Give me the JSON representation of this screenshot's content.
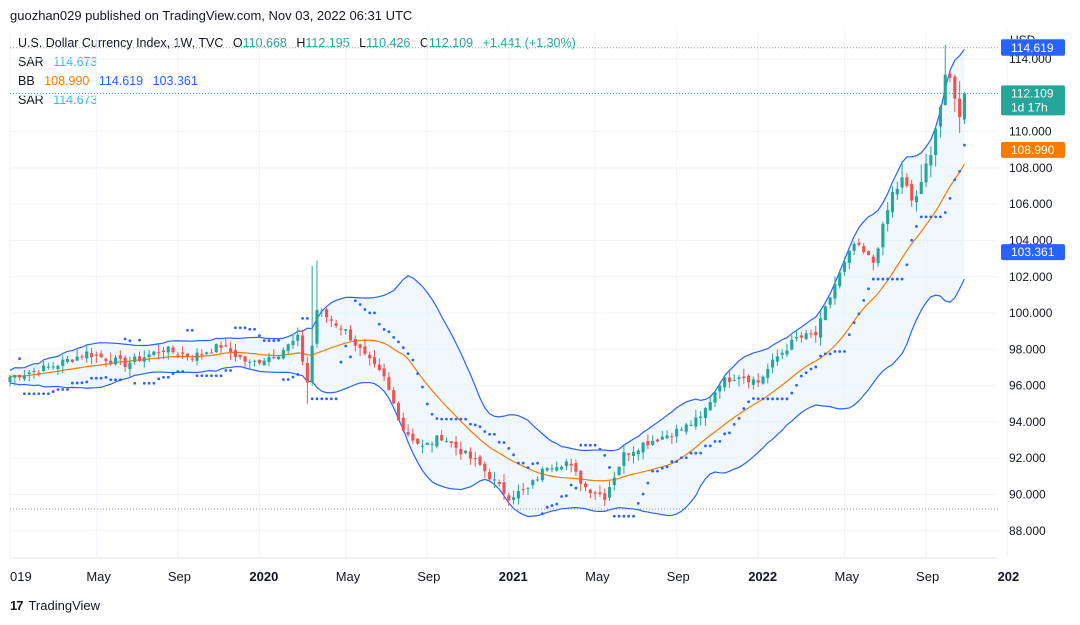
{
  "header": {
    "published": "guozhan029 published on TradingView.com, Nov 03, 2022 06:31 UTC"
  },
  "legend": {
    "symbol": "U.S. Dollar Currency Index, 1W, TVC",
    "o_label": "O",
    "o": "110.668",
    "h_label": "H",
    "h": "112.195",
    "l_label": "L",
    "l": "110.426",
    "c_label": "C",
    "c": "112.109",
    "change": "+1.441 (+1.30%)",
    "sar1_label": "SAR",
    "sar1": "114.673",
    "bb_label": "BB",
    "bb_mid": "108.990",
    "bb_upper": "114.619",
    "bb_lower": "103.361",
    "sar2_label": "SAR",
    "sar2": "114.673"
  },
  "footer": {
    "logo": "17",
    "brand": "TradingView"
  },
  "colors": {
    "up": "#26a69a",
    "down": "#ef5350",
    "bb_line": "#2962ff",
    "bb_mid": "#f57c00",
    "sar": "#2962ff",
    "band_fill": "#e3f2fd"
  },
  "chart_data": {
    "type": "candlestick",
    "title": "U.S. Dollar Currency Index, 1W, TVC",
    "currency": "USD",
    "yticks": [
      88,
      90,
      92,
      94,
      96,
      98,
      100,
      102,
      104,
      106,
      108,
      110,
      112,
      114
    ],
    "ylim": [
      86.5,
      115.6
    ],
    "xlim": [
      0,
      206
    ],
    "xtick_labels": [
      {
        "label": "019",
        "x": 0,
        "bold": false
      },
      {
        "label": "May",
        "x": 18,
        "bold": false
      },
      {
        "label": "Sep",
        "x": 35,
        "bold": false
      },
      {
        "label": "2020",
        "x": 52,
        "bold": true
      },
      {
        "label": "May",
        "x": 70,
        "bold": false
      },
      {
        "label": "Sep",
        "x": 87,
        "bold": false
      },
      {
        "label": "2021",
        "x": 104,
        "bold": true
      },
      {
        "label": "May",
        "x": 122,
        "bold": false
      },
      {
        "label": "Sep",
        "x": 139,
        "bold": false
      },
      {
        "label": "2022",
        "x": 156,
        "bold": true
      },
      {
        "label": "May",
        "x": 174,
        "bold": false
      },
      {
        "label": "Sep",
        "x": 191,
        "bold": false
      },
      {
        "label": "202",
        "x": 208,
        "bold": true
      }
    ],
    "price_tags": [
      {
        "value": 114.673,
        "text": "114.673",
        "sub": "",
        "color": "#26c6da"
      },
      {
        "value": 114.619,
        "text": "114.619",
        "sub": "",
        "color": "#2962ff"
      },
      {
        "value": 112.109,
        "text": "112.109",
        "sub": "1d 17h",
        "color": "#26a69a"
      },
      {
        "value": 108.99,
        "text": "108.990",
        "sub": "",
        "color": "#f57c00"
      },
      {
        "value": 103.361,
        "text": "103.361",
        "sub": "",
        "color": "#2962ff"
      }
    ],
    "reference_lines": [
      114.619,
      112.109,
      89.2
    ],
    "close_anchors": [
      [
        0,
        96.5
      ],
      [
        8,
        97.0
      ],
      [
        16,
        97.8
      ],
      [
        24,
        97.2
      ],
      [
        32,
        98.0
      ],
      [
        38,
        97.6
      ],
      [
        44,
        98.2
      ],
      [
        50,
        97.2
      ],
      [
        56,
        97.8
      ],
      [
        60,
        98.6
      ],
      [
        62,
        96.2
      ],
      [
        64,
        100.2
      ],
      [
        66,
        99.8
      ],
      [
        70,
        99.0
      ],
      [
        74,
        97.6
      ],
      [
        78,
        96.4
      ],
      [
        82,
        93.6
      ],
      [
        86,
        92.6
      ],
      [
        90,
        93.2
      ],
      [
        94,
        92.4
      ],
      [
        98,
        91.6
      ],
      [
        102,
        90.4
      ],
      [
        104,
        89.9
      ],
      [
        108,
        90.3
      ],
      [
        112,
        91.6
      ],
      [
        116,
        91.8
      ],
      [
        120,
        90.4
      ],
      [
        124,
        89.9
      ],
      [
        128,
        92.2
      ],
      [
        132,
        92.8
      ],
      [
        136,
        93.2
      ],
      [
        140,
        93.6
      ],
      [
        144,
        94.2
      ],
      [
        148,
        96.2
      ],
      [
        152,
        96.6
      ],
      [
        156,
        96.2
      ],
      [
        160,
        97.6
      ],
      [
        164,
        98.6
      ],
      [
        168,
        98.8
      ],
      [
        172,
        101.6
      ],
      [
        176,
        103.8
      ],
      [
        180,
        102.8
      ],
      [
        184,
        106.6
      ],
      [
        186,
        107.2
      ],
      [
        188,
        106.2
      ],
      [
        190,
        106.8
      ],
      [
        192,
        109.2
      ],
      [
        194,
        111.4
      ],
      [
        195,
        112.6
      ],
      [
        196,
        112.8
      ],
      [
        197,
        112.2
      ],
      [
        198,
        110.6
      ],
      [
        199,
        112.1
      ]
    ],
    "candles": "generated weekly OHLC series following close_anchors",
    "bollinger_bands": {
      "period": 20,
      "stdev": 2,
      "middle": 108.99,
      "upper": 114.619,
      "lower": 103.361
    },
    "sar": {
      "value": 114.673
    }
  }
}
